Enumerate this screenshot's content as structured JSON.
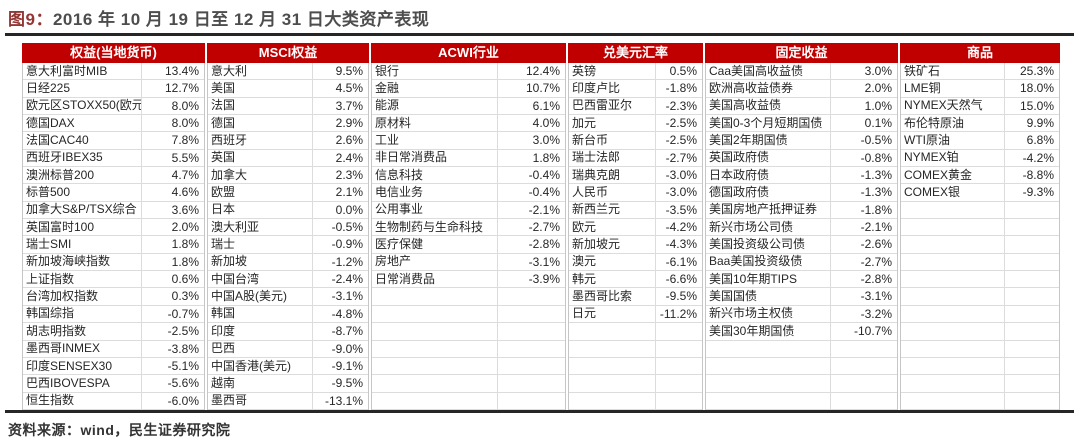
{
  "title": {
    "figure_label": "图9：",
    "text": "2016 年 10 月 19 日至 12 月 31 日大类资产表现"
  },
  "source_note": "资料来源：wind，民生证券研究院",
  "colors": {
    "header_bg": "#c00000",
    "header_text": "#ffffff",
    "rule": "#262626",
    "title_label": "#943634",
    "title_text": "#4d4d4d",
    "body_text": "#262626",
    "grid": "#dcdcdc",
    "group_border": "#c6c6c6"
  },
  "table": {
    "row_count": 20,
    "groups": [
      {
        "header": "权益(当地货币)",
        "rows": [
          [
            "意大利富时MIB",
            "13.4%"
          ],
          [
            "日经225",
            "12.7%"
          ],
          [
            "欧元区STOXX50(欧元)",
            "8.0%"
          ],
          [
            "德国DAX",
            "8.0%"
          ],
          [
            "法国CAC40",
            "7.8%"
          ],
          [
            "西班牙IBEX35",
            "5.5%"
          ],
          [
            "澳洲标普200",
            "4.7%"
          ],
          [
            "标普500",
            "4.6%"
          ],
          [
            "加拿大S&P/TSX综合",
            "3.6%"
          ],
          [
            "英国富时100",
            "2.0%"
          ],
          [
            "瑞士SMI",
            "1.8%"
          ],
          [
            "新加坡海峡指数",
            "1.8%"
          ],
          [
            "上证指数",
            "0.6%"
          ],
          [
            "台湾加权指数",
            "0.3%"
          ],
          [
            "韩国综指",
            "-0.7%"
          ],
          [
            "胡志明指数",
            "-2.5%"
          ],
          [
            "墨西哥INMEX",
            "-3.8%"
          ],
          [
            "印度SENSEX30",
            "-5.1%"
          ],
          [
            "巴西IBOVESPA",
            "-5.6%"
          ],
          [
            "恒生指数",
            "-6.0%"
          ]
        ]
      },
      {
        "header": "MSCI权益",
        "rows": [
          [
            "意大利",
            "9.5%"
          ],
          [
            "美国",
            "4.5%"
          ],
          [
            "法国",
            "3.7%"
          ],
          [
            "德国",
            "2.9%"
          ],
          [
            "西班牙",
            "2.6%"
          ],
          [
            "英国",
            "2.4%"
          ],
          [
            "加拿大",
            "2.3%"
          ],
          [
            "欧盟",
            "2.1%"
          ],
          [
            "日本",
            "0.0%"
          ],
          [
            "澳大利亚",
            "-0.5%"
          ],
          [
            "瑞士",
            "-0.9%"
          ],
          [
            "新加坡",
            "-1.2%"
          ],
          [
            "中国台湾",
            "-2.4%"
          ],
          [
            "中国A股(美元)",
            "-3.1%"
          ],
          [
            "韩国",
            "-4.8%"
          ],
          [
            "印度",
            "-8.7%"
          ],
          [
            "巴西",
            "-9.0%"
          ],
          [
            "中国香港(美元)",
            "-9.1%"
          ],
          [
            "越南",
            "-9.5%"
          ],
          [
            "墨西哥",
            "-13.1%"
          ]
        ]
      },
      {
        "header": "ACWI行业",
        "rows": [
          [
            "银行",
            "12.4%"
          ],
          [
            "金融",
            "10.7%"
          ],
          [
            "能源",
            "6.1%"
          ],
          [
            "原材料",
            "4.0%"
          ],
          [
            "工业",
            "3.0%"
          ],
          [
            "非日常消费品",
            "1.8%"
          ],
          [
            "信息科技",
            "-0.4%"
          ],
          [
            "电信业务",
            "-0.4%"
          ],
          [
            "公用事业",
            "-2.1%"
          ],
          [
            "生物制药与生命科技",
            "-2.7%"
          ],
          [
            "医疗保健",
            "-2.8%"
          ],
          [
            "房地产",
            "-3.1%"
          ],
          [
            "日常消费品",
            "-3.9%"
          ]
        ]
      },
      {
        "header": "兑美元汇率",
        "rows": [
          [
            "英镑",
            "0.5%"
          ],
          [
            "印度卢比",
            "-1.8%"
          ],
          [
            "巴西雷亚尔",
            "-2.3%"
          ],
          [
            "加元",
            "-2.5%"
          ],
          [
            "新台币",
            "-2.5%"
          ],
          [
            "瑞士法郎",
            "-2.7%"
          ],
          [
            "瑞典克朗",
            "-3.0%"
          ],
          [
            "人民币",
            "-3.0%"
          ],
          [
            "新西兰元",
            "-3.5%"
          ],
          [
            "欧元",
            "-4.2%"
          ],
          [
            "新加坡元",
            "-4.3%"
          ],
          [
            "澳元",
            "-6.1%"
          ],
          [
            "韩元",
            "-6.6%"
          ],
          [
            "墨西哥比索",
            "-9.5%"
          ],
          [
            "日元",
            "-11.2%"
          ]
        ]
      },
      {
        "header": "固定收益",
        "rows": [
          [
            "Caa美国高收益债",
            "3.0%"
          ],
          [
            "欧洲高收益债券",
            "2.0%"
          ],
          [
            "美国高收益债",
            "1.0%"
          ],
          [
            "美国0-3个月短期国债",
            "0.1%"
          ],
          [
            "美国2年期国债",
            "-0.5%"
          ],
          [
            "英国政府债",
            "-0.8%"
          ],
          [
            "日本政府债",
            "-1.3%"
          ],
          [
            "德国政府债",
            "-1.3%"
          ],
          [
            "美国房地产抵押证券",
            "-1.8%"
          ],
          [
            "新兴市场公司债",
            "-2.1%"
          ],
          [
            "美国投资级公司债",
            "-2.6%"
          ],
          [
            "Baa美国投资级债",
            "-2.7%"
          ],
          [
            "美国10年期TIPS",
            "-2.8%"
          ],
          [
            "美国国债",
            "-3.1%"
          ],
          [
            "新兴市场主权债",
            "-3.2%"
          ],
          [
            "美国30年期国债",
            "-10.7%"
          ]
        ]
      },
      {
        "header": "商品",
        "rows": [
          [
            "铁矿石",
            "25.3%"
          ],
          [
            "LME铜",
            "18.0%"
          ],
          [
            "NYMEX天然气",
            "15.0%"
          ],
          [
            "布伦特原油",
            "9.9%"
          ],
          [
            "WTI原油",
            "6.8%"
          ],
          [
            "NYMEX铂",
            "-4.2%"
          ],
          [
            "COMEX黄金",
            "-8.8%"
          ],
          [
            "COMEX银",
            "-9.3%"
          ]
        ]
      }
    ]
  }
}
